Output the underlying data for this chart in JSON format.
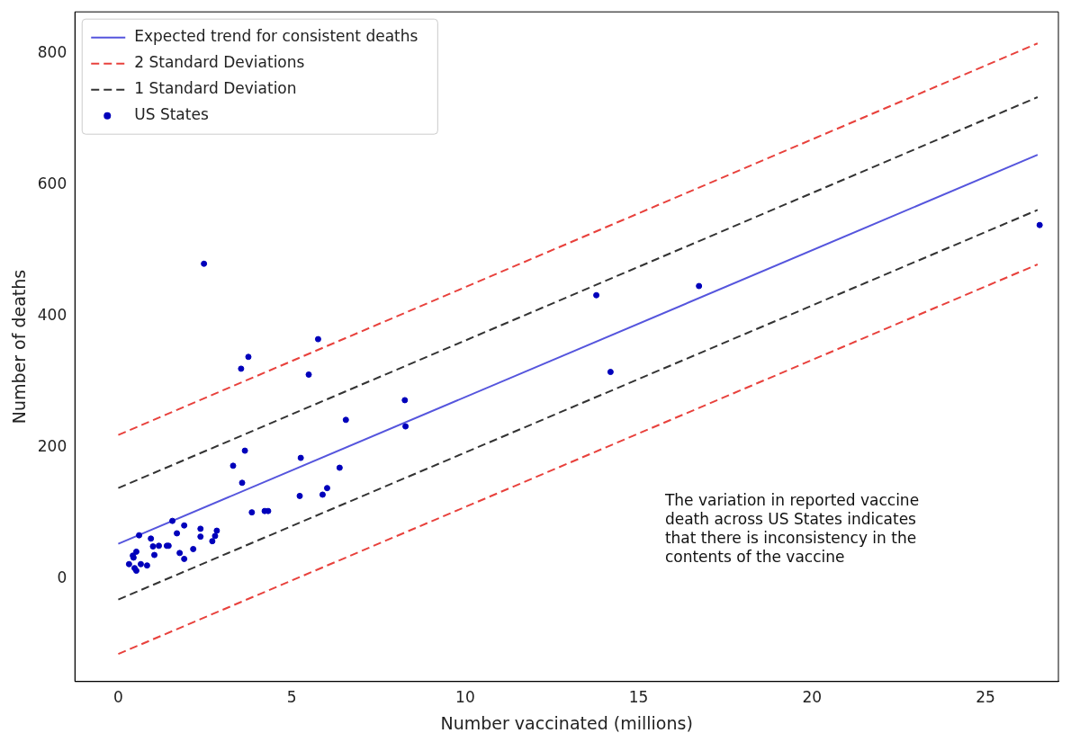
{
  "chart_data": {
    "type": "scatter",
    "xlabel": "Number vaccinated (millions)",
    "ylabel": "Number of deaths",
    "xlim": [
      -1.25,
      27.1
    ],
    "ylim": [
      -157,
      864
    ],
    "xticks": [
      0,
      5,
      10,
      15,
      20,
      25
    ],
    "yticks": [
      0,
      200,
      400,
      600,
      800
    ],
    "grid": false,
    "legend": "top left",
    "annotations": [
      "The variation in reported vaccine death across US States indicates that there is inconsistency in the contents of the vaccine"
    ],
    "series": [
      {
        "name": "Expected trend for consistent deaths",
        "type": "line",
        "color": "#5555dd",
        "line_style": "solid",
        "marker": "none",
        "x": [
          0,
          26.5
        ],
        "values": [
          53,
          646
        ]
      },
      {
        "name": "2 Standard Deviations",
        "type": "line",
        "color": "#e8413c",
        "line_style": "dashed",
        "marker": "none",
        "x": [
          0,
          26.5
        ],
        "values": [
          219,
          816
        ]
      },
      {
        "type": "line",
        "color": "#e8413c",
        "line_style": "dashed",
        "marker": "none",
        "x": [
          0,
          26.5
        ],
        "values": [
          -115,
          479
        ]
      },
      {
        "name": "1 Standard Deviation",
        "type": "line",
        "color": "#333333",
        "line_style": "dashed",
        "marker": "none",
        "x": [
          0,
          26.5
        ],
        "values": [
          138,
          734
        ]
      },
      {
        "type": "line",
        "color": "#333333",
        "line_style": "dashed",
        "marker": "none",
        "x": [
          0,
          26.5
        ],
        "values": [
          -32,
          562
        ]
      },
      {
        "name": "US States",
        "color": "#0000bb",
        "marker": "circle",
        "x": [
          3.65,
          3.31,
          3.57,
          5.26,
          6.38,
          5.23,
          5.89,
          6.02,
          3.85,
          4.22,
          4.32,
          0.6,
          1.56,
          1.9,
          1.69,
          2.37,
          2.37,
          2.84,
          2.79,
          2.71,
          0.94,
          1.0,
          1.17,
          1.4,
          1.45,
          1.04,
          1.77,
          2.16,
          1.9,
          0.52,
          0.42,
          0.44,
          0.31,
          0.65,
          0.83,
          0.47,
          0.52,
          2.47,
          3.75,
          3.54,
          5.76,
          5.49,
          8.26,
          8.28,
          6.56,
          13.78,
          14.19,
          26.56,
          16.74
        ],
        "values": [
          195,
          172,
          146,
          184,
          169,
          126,
          128,
          138,
          101,
          103,
          103,
          66,
          88,
          81,
          69,
          76,
          64,
          73,
          65,
          57,
          61,
          49,
          50,
          50,
          50,
          36,
          39,
          45,
          30,
          41,
          35,
          32,
          22,
          22,
          20,
          16,
          12,
          480,
          338,
          320,
          365,
          311,
          272,
          232,
          242,
          432,
          315,
          539,
          446
        ]
      }
    ]
  }
}
